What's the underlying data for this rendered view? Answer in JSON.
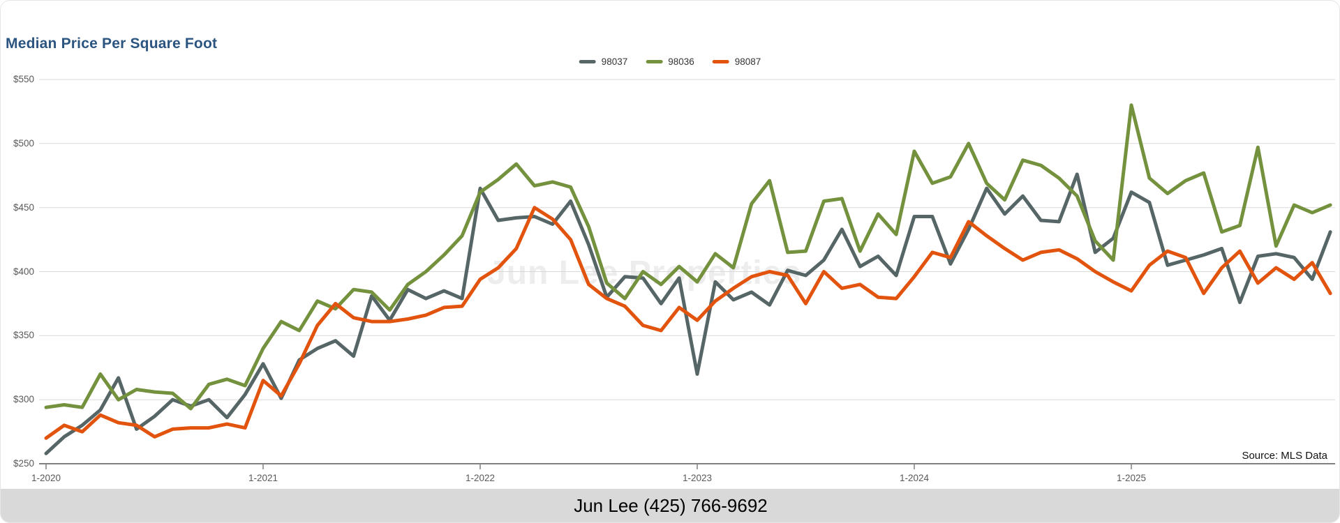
{
  "header": {
    "title": "Median Price Per Square Foot"
  },
  "watermark": "Jun Lee Properties",
  "source_note": "Source: MLS Data",
  "footer": {
    "text": "Jun Lee (425) 766-9692"
  },
  "chart_data": {
    "type": "line",
    "title": "Median Price Per Square Foot",
    "x_start": "1-2020",
    "x_interval": "monthly",
    "x_tick_labels": [
      "1-2020",
      "1-2021",
      "1-2022",
      "1-2023",
      "1-2024",
      "1-2025"
    ],
    "y_tick_labels": [
      "$550",
      "$500",
      "$450",
      "$400",
      "$350",
      "$300",
      "$250"
    ],
    "ylim": [
      250,
      550
    ],
    "grid": true,
    "legend_position": "top-center",
    "colors": {
      "accent_title": "#2b5580",
      "gridline": "#d9d9d9",
      "axis_line": "#808080",
      "axis_text": "#595959",
      "watermark": "#ededed",
      "footer_bg": "#d9d9d9"
    },
    "series": [
      {
        "name": "98037",
        "color": "#566565",
        "values": [
          258,
          271,
          280,
          292,
          317,
          277,
          287,
          300,
          295,
          300,
          286,
          304,
          328,
          301,
          331,
          340,
          346,
          334,
          381,
          362,
          386,
          379,
          385,
          379,
          465,
          440,
          442,
          443,
          437,
          455,
          421,
          380,
          396,
          395,
          375,
          395,
          320,
          392,
          378,
          384,
          374,
          401,
          397,
          409,
          433,
          404,
          412,
          397,
          443,
          443,
          406,
          433,
          465,
          445,
          459,
          440,
          439,
          476,
          415,
          426,
          462,
          454,
          405,
          409,
          413,
          418,
          376,
          412,
          414,
          411,
          394,
          431
        ]
      },
      {
        "name": "98036",
        "color": "#74913e",
        "values": [
          294,
          296,
          294,
          320,
          300,
          308,
          306,
          305,
          293,
          312,
          316,
          311,
          340,
          361,
          354,
          377,
          371,
          386,
          384,
          370,
          390,
          400,
          413,
          428,
          462,
          472,
          484,
          467,
          470,
          466,
          435,
          391,
          379,
          400,
          390,
          404,
          392,
          414,
          403,
          453,
          471,
          415,
          416,
          455,
          457,
          416,
          445,
          429,
          494,
          469,
          474,
          500,
          469,
          456,
          487,
          483,
          473,
          459,
          424,
          409,
          530,
          473,
          461,
          471,
          477,
          431,
          436,
          497,
          420,
          452,
          446,
          452
        ]
      },
      {
        "name": "98087",
        "color": "#e2540e",
        "values": [
          270,
          280,
          275,
          288,
          282,
          280,
          271,
          277,
          278,
          278,
          281,
          278,
          315,
          303,
          328,
          358,
          375,
          364,
          361,
          361,
          363,
          366,
          372,
          373,
          394,
          403,
          418,
          450,
          441,
          425,
          390,
          379,
          373,
          358,
          354,
          372,
          362,
          377,
          387,
          396,
          400,
          397,
          375,
          400,
          387,
          390,
          380,
          379,
          396,
          415,
          411,
          439,
          428,
          418,
          409,
          415,
          417,
          410,
          400,
          392,
          385,
          405,
          416,
          411,
          383,
          403,
          416,
          391,
          403,
          394,
          407,
          383
        ]
      }
    ]
  }
}
